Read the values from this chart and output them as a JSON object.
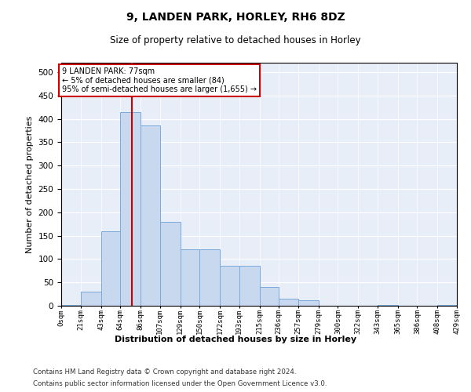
{
  "title1": "9, LANDEN PARK, HORLEY, RH6 8DZ",
  "title2": "Size of property relative to detached houses in Horley",
  "xlabel": "Distribution of detached houses by size in Horley",
  "ylabel": "Number of detached properties",
  "bar_color": "#c8d8ee",
  "bar_edge_color": "#7aaadb",
  "background_color": "#e8eef8",
  "annotation_box_color": "#ffffff",
  "annotation_border_color": "#cc0000",
  "vline_color": "#cc0000",
  "vline_x": 77,
  "footer1": "Contains HM Land Registry data © Crown copyright and database right 2024.",
  "footer2": "Contains public sector information licensed under the Open Government Licence v3.0.",
  "annotation_line1": "9 LANDEN PARK: 77sqm",
  "annotation_line2": "← 5% of detached houses are smaller (84)",
  "annotation_line3": "95% of semi-detached houses are larger (1,655) →",
  "bin_edges": [
    0,
    21,
    43,
    64,
    86,
    107,
    129,
    150,
    172,
    193,
    215,
    236,
    257,
    279,
    300,
    322,
    343,
    365,
    386,
    408,
    429
  ],
  "bin_labels": [
    "0sqm",
    "21sqm",
    "43sqm",
    "64sqm",
    "86sqm",
    "107sqm",
    "129sqm",
    "150sqm",
    "172sqm",
    "193sqm",
    "215sqm",
    "236sqm",
    "257sqm",
    "279sqm",
    "300sqm",
    "322sqm",
    "343sqm",
    "365sqm",
    "386sqm",
    "408sqm",
    "429sqm"
  ],
  "bar_heights": [
    2,
    30,
    160,
    415,
    385,
    180,
    120,
    120,
    85,
    85,
    40,
    15,
    12,
    0,
    0,
    0,
    2,
    0,
    0,
    2
  ],
  "ylim": [
    0,
    520
  ],
  "yticks": [
    0,
    50,
    100,
    150,
    200,
    250,
    300,
    350,
    400,
    450,
    500
  ]
}
